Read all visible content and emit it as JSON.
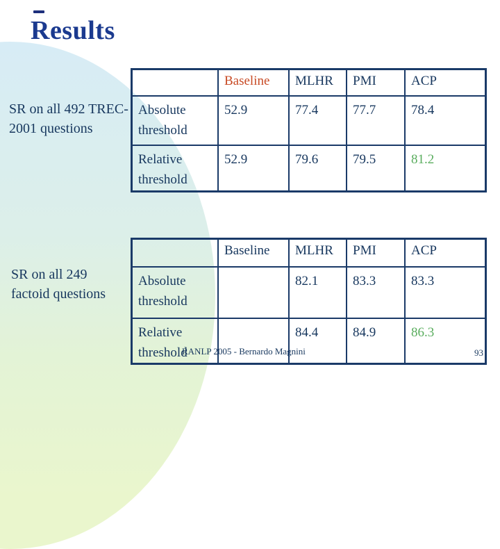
{
  "slide": {
    "title": "Results",
    "footer_text": "RANLP 2005 - Bernardo Magnini",
    "page_number": "93"
  },
  "sections": [
    {
      "caption": "SR on all 492 TREC-2001 questions"
    },
    {
      "caption": "SR on all 249 factoid questions"
    }
  ],
  "tables": [
    {
      "headers": [
        "",
        "Baseline",
        "MLHR",
        "PMI",
        "ACP"
      ],
      "rows": [
        {
          "label": "Absolute threshold",
          "values": [
            "52.9",
            "77.4",
            "77.7",
            "78.4"
          ]
        },
        {
          "label": "Relative threshold",
          "values": [
            "52.9",
            "79.6",
            "79.5",
            "81.2"
          ]
        }
      ]
    },
    {
      "headers": [
        "",
        "Baseline",
        "MLHR",
        "PMI",
        "ACP"
      ],
      "rows": [
        {
          "label": "Absolute threshold",
          "values": [
            "",
            "82.1",
            "83.3",
            "83.3"
          ]
        },
        {
          "label": "Relative threshold",
          "values": [
            "",
            "84.4",
            "84.9",
            "86.3"
          ]
        }
      ]
    }
  ],
  "colors": {
    "title_navy": "#1b3a8f",
    "table_border_navy": "#1a3a68",
    "table_text_navy": "#17375e",
    "baseline_highlight_red": "#c84a24",
    "best_value_green": "#5aad5e",
    "background_top_blue": "#d7ecf6",
    "background_bottom_green": "#eaf6cd"
  }
}
